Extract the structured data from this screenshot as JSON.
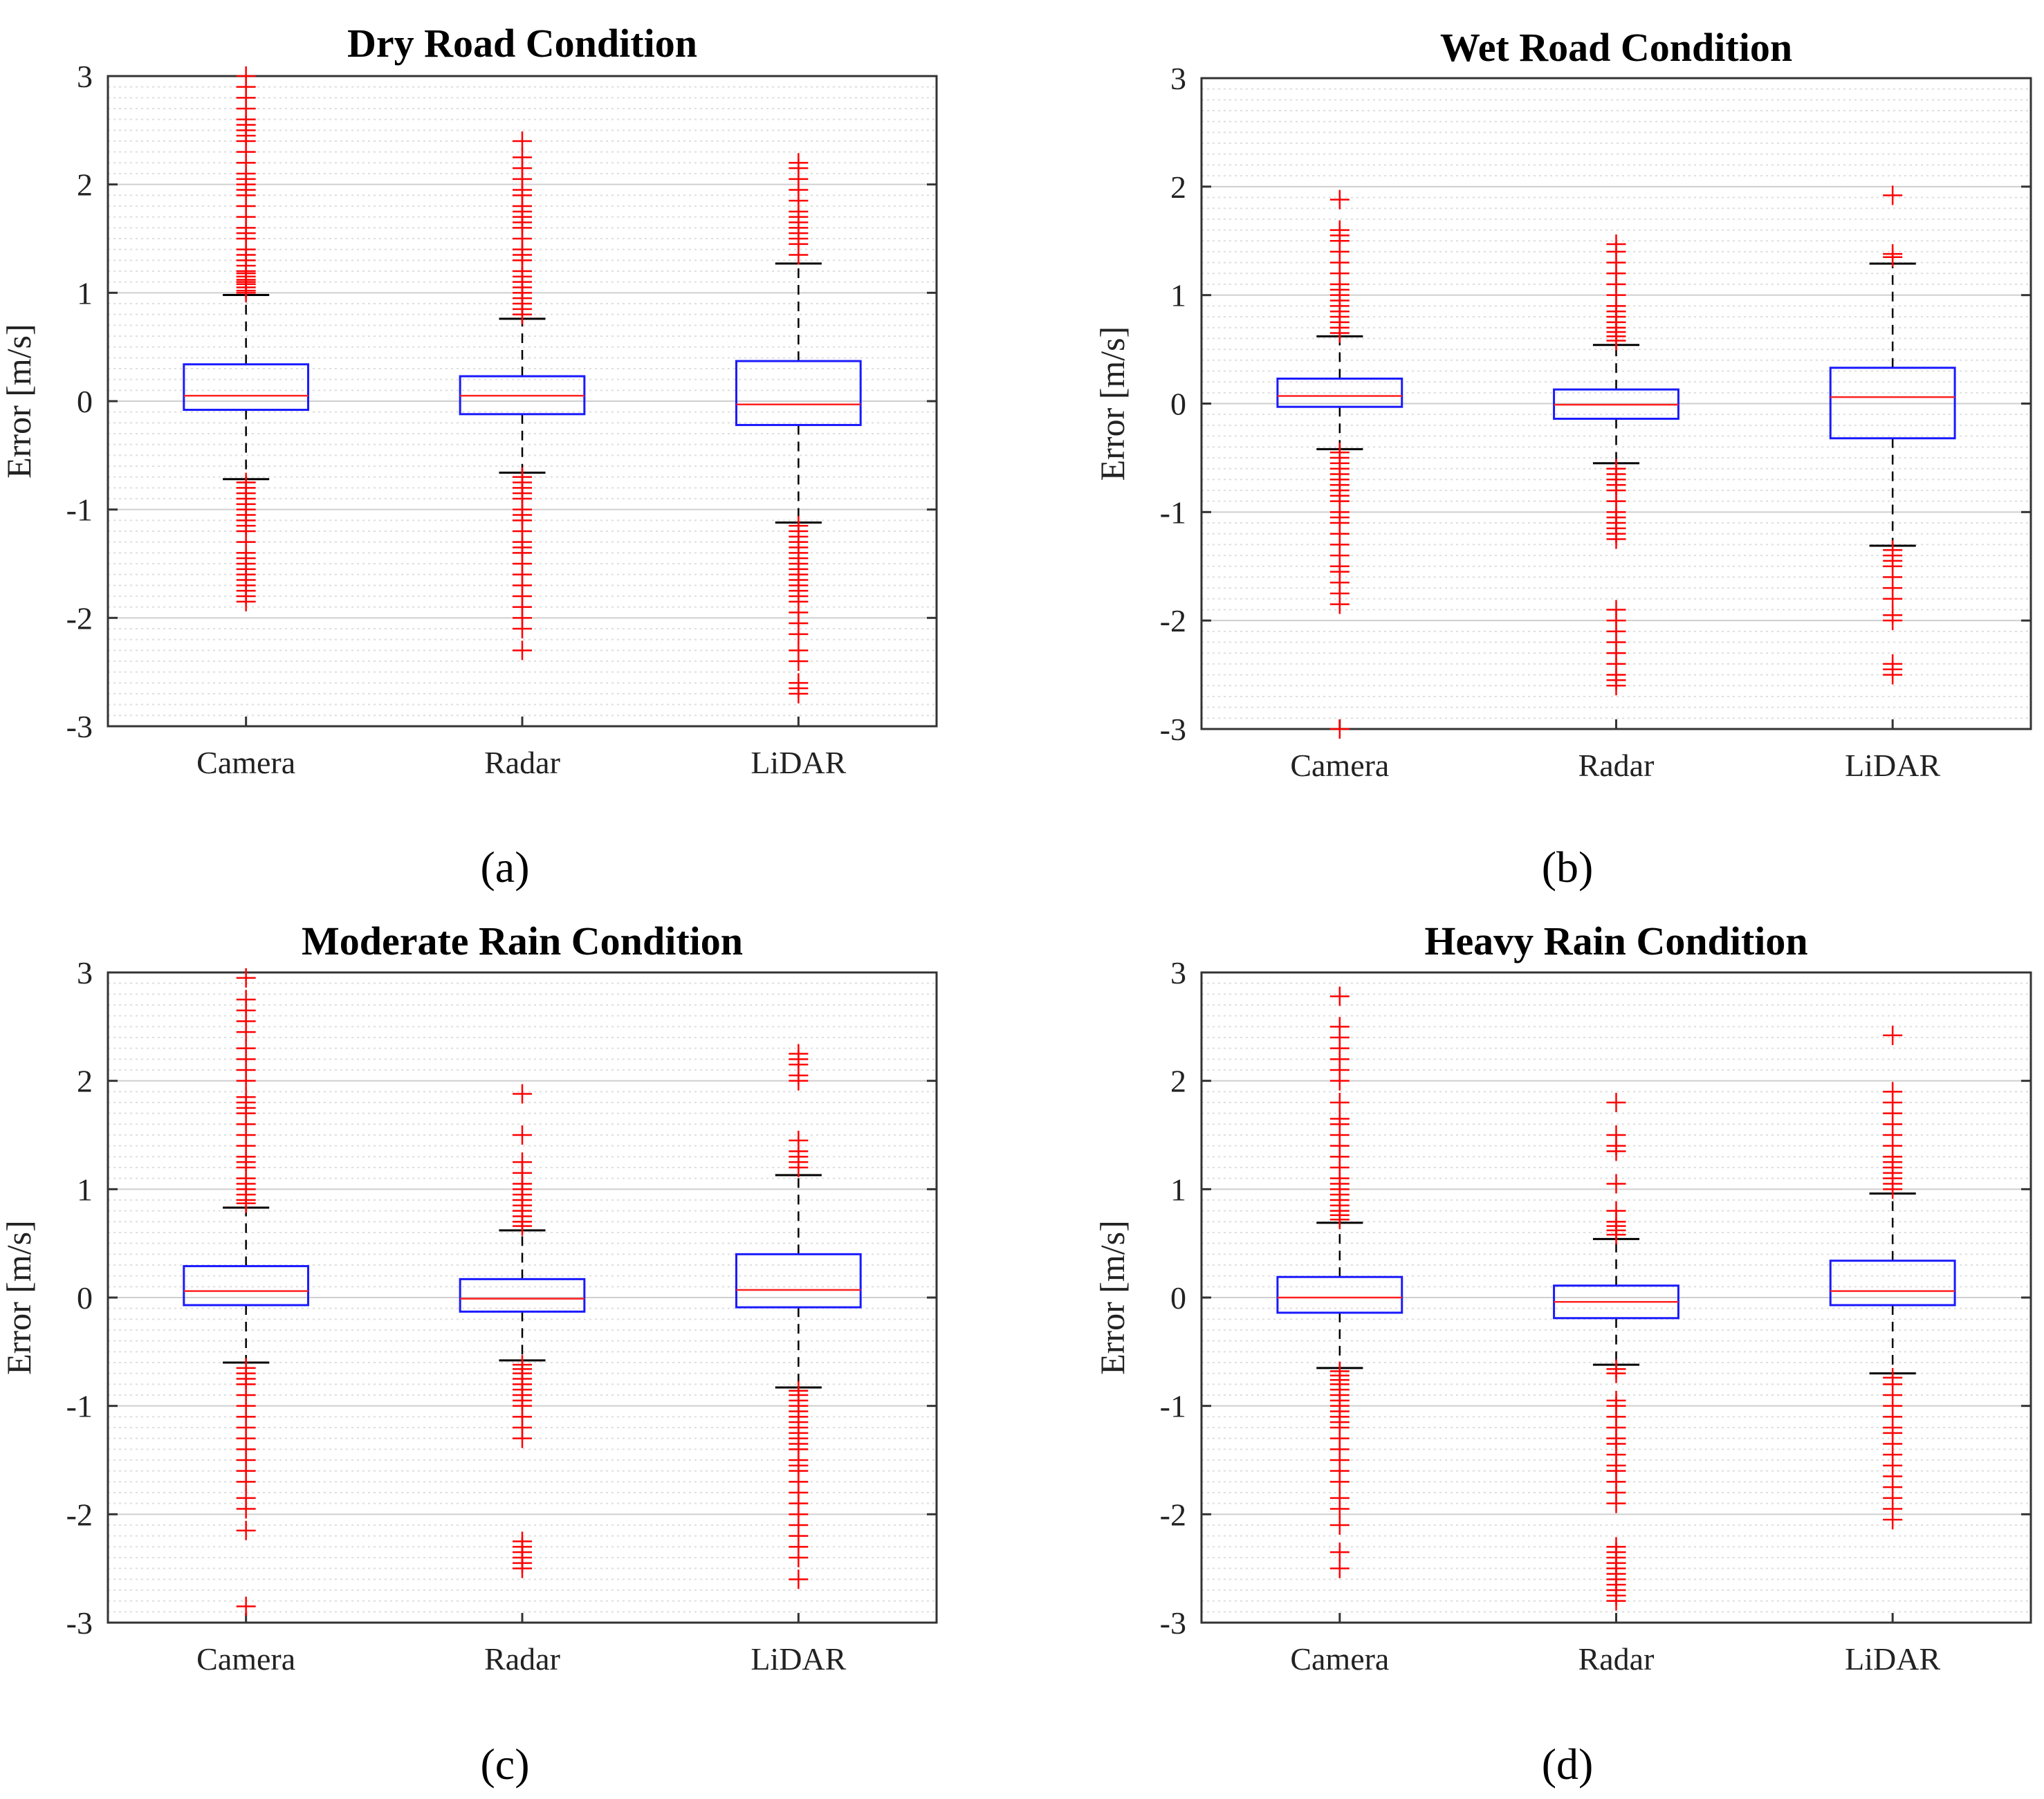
{
  "chart_data": [
    {
      "type": "box",
      "title": "Dry Road Condition",
      "panel_label": "(a)",
      "ylabel": "Error [m/s]",
      "xlabel": "",
      "ylim": [
        -3,
        3
      ],
      "yticks": [
        3,
        2,
        1,
        0,
        -1,
        -2,
        -3
      ],
      "categories": [
        "Camera",
        "Radar",
        "LiDAR"
      ],
      "grid": "horizontal major and minor",
      "boxes": [
        {
          "category": "Camera",
          "q1": -0.08,
          "median": 0.05,
          "q3": 0.34,
          "whisker_low": -0.72,
          "whisker_high": 0.98,
          "outliers_high": [
            1.0,
            1.02,
            1.05,
            1.08,
            1.1,
            1.12,
            1.15,
            1.18,
            1.2,
            1.25,
            1.3,
            1.35,
            1.4,
            1.5,
            1.55,
            1.6,
            1.7,
            1.8,
            1.9,
            1.95,
            2.0,
            2.05,
            2.1,
            2.2,
            2.3,
            2.4,
            2.45,
            2.5,
            2.55,
            2.6,
            2.7,
            2.8,
            2.9,
            3.0
          ],
          "outliers_low": [
            -0.75,
            -0.8,
            -0.85,
            -0.9,
            -0.95,
            -1.0,
            -1.05,
            -1.1,
            -1.15,
            -1.2,
            -1.3,
            -1.4,
            -1.45,
            -1.5,
            -1.55,
            -1.6,
            -1.65,
            -1.7,
            -1.75,
            -1.8,
            -1.85
          ]
        },
        {
          "category": "Radar",
          "q1": -0.12,
          "median": 0.05,
          "q3": 0.23,
          "whisker_low": -0.66,
          "whisker_high": 0.76,
          "outliers_high": [
            0.8,
            0.85,
            0.9,
            0.95,
            1.0,
            1.05,
            1.1,
            1.15,
            1.2,
            1.3,
            1.35,
            1.4,
            1.5,
            1.6,
            1.65,
            1.7,
            1.75,
            1.8,
            1.9,
            1.95,
            2.05,
            2.15,
            2.25,
            2.4
          ],
          "outliers_low": [
            -0.7,
            -0.75,
            -0.8,
            -0.85,
            -0.9,
            -1.0,
            -1.05,
            -1.1,
            -1.2,
            -1.3,
            -1.35,
            -1.4,
            -1.5,
            -1.6,
            -1.7,
            -1.8,
            -1.9,
            -2.0,
            -2.1,
            -2.3
          ]
        },
        {
          "category": "LiDAR",
          "q1": -0.22,
          "median": -0.03,
          "q3": 0.37,
          "whisker_low": -1.12,
          "whisker_high": 1.27,
          "outliers_high": [
            1.35,
            1.45,
            1.5,
            1.55,
            1.6,
            1.65,
            1.7,
            1.75,
            1.85,
            1.95,
            2.05,
            2.15,
            2.2
          ],
          "outliers_low": [
            -1.15,
            -1.2,
            -1.25,
            -1.3,
            -1.35,
            -1.4,
            -1.45,
            -1.5,
            -1.55,
            -1.6,
            -1.65,
            -1.7,
            -1.75,
            -1.8,
            -1.85,
            -1.95,
            -2.05,
            -2.15,
            -2.3,
            -2.4,
            -2.6,
            -2.65,
            -2.7
          ]
        }
      ]
    },
    {
      "type": "box",
      "title": "Wet Road Condition",
      "panel_label": "(b)",
      "ylabel": "Error [m/s]",
      "xlabel": "",
      "ylim": [
        -3,
        3
      ],
      "yticks": [
        3,
        2,
        1,
        0,
        -1,
        -2,
        -3
      ],
      "categories": [
        "Camera",
        "Radar",
        "LiDAR"
      ],
      "grid": "horizontal major and minor",
      "boxes": [
        {
          "category": "Camera",
          "q1": -0.03,
          "median": 0.07,
          "q3": 0.23,
          "whisker_low": -0.42,
          "whisker_high": 0.62,
          "outliers_high": [
            0.65,
            0.7,
            0.75,
            0.8,
            0.85,
            0.9,
            0.95,
            1.0,
            1.05,
            1.1,
            1.2,
            1.3,
            1.4,
            1.5,
            1.55,
            1.6,
            1.88
          ],
          "outliers_low": [
            -0.45,
            -0.5,
            -0.55,
            -0.6,
            -0.65,
            -0.7,
            -0.75,
            -0.8,
            -0.85,
            -0.9,
            -1.0,
            -1.05,
            -1.1,
            -1.2,
            -1.3,
            -1.4,
            -1.5,
            -1.55,
            -1.65,
            -1.75,
            -1.85,
            -3.0
          ]
        },
        {
          "category": "Radar",
          "q1": -0.14,
          "median": -0.01,
          "q3": 0.13,
          "whisker_low": -0.55,
          "whisker_high": 0.54,
          "outliers_high": [
            0.58,
            0.62,
            0.66,
            0.7,
            0.75,
            0.8,
            0.85,
            0.9,
            1.0,
            1.1,
            1.2,
            1.3,
            1.4,
            1.47
          ],
          "outliers_low": [
            -0.6,
            -0.65,
            -0.7,
            -0.75,
            -0.8,
            -0.9,
            -1.0,
            -1.05,
            -1.1,
            -1.15,
            -1.2,
            -1.25,
            -1.9,
            -2.0,
            -2.1,
            -2.2,
            -2.3,
            -2.4,
            -2.5,
            -2.55,
            -2.6
          ]
        },
        {
          "category": "LiDAR",
          "q1": -0.32,
          "median": 0.06,
          "q3": 0.33,
          "whisker_low": -1.31,
          "whisker_high": 1.29,
          "outliers_high": [
            1.35,
            1.38,
            1.92
          ],
          "outliers_low": [
            -1.35,
            -1.4,
            -1.45,
            -1.5,
            -1.6,
            -1.7,
            -1.8,
            -1.95,
            -2.0,
            -2.4,
            -2.45,
            -2.5
          ]
        }
      ]
    },
    {
      "type": "box",
      "title": "Moderate Rain Condition",
      "panel_label": "(c)",
      "ylabel": "Error [m/s]",
      "xlabel": "",
      "ylim": [
        -3,
        3
      ],
      "yticks": [
        3,
        2,
        1,
        0,
        -1,
        -2,
        -3
      ],
      "categories": [
        "Camera",
        "Radar",
        "LiDAR"
      ],
      "grid": "horizontal major and minor",
      "boxes": [
        {
          "category": "Camera",
          "q1": -0.07,
          "median": 0.06,
          "q3": 0.29,
          "whisker_low": -0.6,
          "whisker_high": 0.83,
          "outliers_high": [
            0.87,
            0.9,
            0.95,
            1.0,
            1.05,
            1.1,
            1.2,
            1.25,
            1.3,
            1.4,
            1.5,
            1.6,
            1.7,
            1.75,
            1.8,
            1.85,
            2.0,
            2.1,
            2.2,
            2.3,
            2.45,
            2.55,
            2.65,
            2.75,
            2.95
          ],
          "outliers_low": [
            -0.65,
            -0.7,
            -0.75,
            -0.8,
            -0.9,
            -1.0,
            -1.1,
            -1.2,
            -1.3,
            -1.4,
            -1.5,
            -1.6,
            -1.7,
            -1.85,
            -1.95,
            -2.15,
            -2.85
          ]
        },
        {
          "category": "Radar",
          "q1": -0.13,
          "median": -0.01,
          "q3": 0.17,
          "whisker_low": -0.58,
          "whisker_high": 0.62,
          "outliers_high": [
            0.66,
            0.7,
            0.75,
            0.8,
            0.85,
            0.9,
            0.95,
            1.0,
            1.05,
            1.15,
            1.25,
            1.5,
            1.88
          ],
          "outliers_low": [
            -0.62,
            -0.66,
            -0.7,
            -0.75,
            -0.8,
            -0.85,
            -0.9,
            -0.95,
            -1.0,
            -1.1,
            -1.2,
            -1.3,
            -2.25,
            -2.3,
            -2.35,
            -2.4,
            -2.45,
            -2.5
          ]
        },
        {
          "category": "LiDAR",
          "q1": -0.09,
          "median": 0.07,
          "q3": 0.4,
          "whisker_low": -0.83,
          "whisker_high": 1.13,
          "outliers_high": [
            1.2,
            1.25,
            1.3,
            1.35,
            1.45,
            2.0,
            2.05,
            2.15,
            2.2,
            2.25
          ],
          "outliers_low": [
            -0.86,
            -0.9,
            -0.95,
            -1.0,
            -1.05,
            -1.1,
            -1.15,
            -1.2,
            -1.25,
            -1.3,
            -1.35,
            -1.4,
            -1.5,
            -1.55,
            -1.6,
            -1.7,
            -1.8,
            -1.9,
            -2.0,
            -2.1,
            -2.2,
            -2.3,
            -2.4,
            -2.6
          ]
        }
      ]
    },
    {
      "type": "box",
      "title": "Heavy Rain Condition",
      "panel_label": "(d)",
      "ylabel": "Error [m/s]",
      "xlabel": "",
      "ylim": [
        -3,
        3
      ],
      "yticks": [
        3,
        2,
        1,
        0,
        -1,
        -2,
        -3
      ],
      "categories": [
        "Camera",
        "Radar",
        "LiDAR"
      ],
      "grid": "horizontal major and minor",
      "boxes": [
        {
          "category": "Camera",
          "q1": -0.14,
          "median": 0.0,
          "q3": 0.19,
          "whisker_low": -0.65,
          "whisker_high": 0.69,
          "outliers_high": [
            0.72,
            0.76,
            0.8,
            0.85,
            0.9,
            0.95,
            1.0,
            1.05,
            1.1,
            1.2,
            1.3,
            1.4,
            1.5,
            1.6,
            1.65,
            1.8,
            2.0,
            2.1,
            2.2,
            2.3,
            2.4,
            2.5,
            2.78
          ],
          "outliers_low": [
            -0.68,
            -0.72,
            -0.76,
            -0.8,
            -0.85,
            -0.9,
            -0.95,
            -1.0,
            -1.05,
            -1.1,
            -1.15,
            -1.2,
            -1.3,
            -1.4,
            -1.5,
            -1.6,
            -1.7,
            -1.85,
            -1.95,
            -2.1,
            -2.35,
            -2.5
          ]
        },
        {
          "category": "Radar",
          "q1": -0.19,
          "median": -0.04,
          "q3": 0.11,
          "whisker_low": -0.62,
          "whisker_high": 0.54,
          "outliers_high": [
            0.58,
            0.62,
            0.66,
            0.7,
            0.8,
            1.05,
            1.35,
            1.4,
            1.5,
            1.8
          ],
          "outliers_low": [
            -0.66,
            -0.7,
            -0.95,
            -1.0,
            -1.1,
            -1.2,
            -1.3,
            -1.35,
            -1.45,
            -1.55,
            -1.6,
            -1.7,
            -1.8,
            -1.9,
            -2.3,
            -2.35,
            -2.4,
            -2.45,
            -2.5,
            -2.55,
            -2.6,
            -2.65,
            -2.7,
            -2.75,
            -2.8
          ]
        },
        {
          "category": "LiDAR",
          "q1": -0.07,
          "median": 0.06,
          "q3": 0.34,
          "whisker_low": -0.7,
          "whisker_high": 0.96,
          "outliers_high": [
            1.0,
            1.05,
            1.1,
            1.15,
            1.2,
            1.25,
            1.3,
            1.4,
            1.5,
            1.6,
            1.7,
            1.8,
            1.9,
            2.42
          ],
          "outliers_low": [
            -0.74,
            -0.8,
            -0.9,
            -1.0,
            -1.1,
            -1.2,
            -1.25,
            -1.35,
            -1.45,
            -1.55,
            -1.65,
            -1.75,
            -1.85,
            -1.95,
            -2.05
          ]
        }
      ]
    }
  ],
  "colors": {
    "box": "#1a1aff",
    "median": "#ff2020",
    "whisker": "#000000",
    "outlier": "#ff0000",
    "grid": "#cfcfcf",
    "axes": "#333333"
  }
}
